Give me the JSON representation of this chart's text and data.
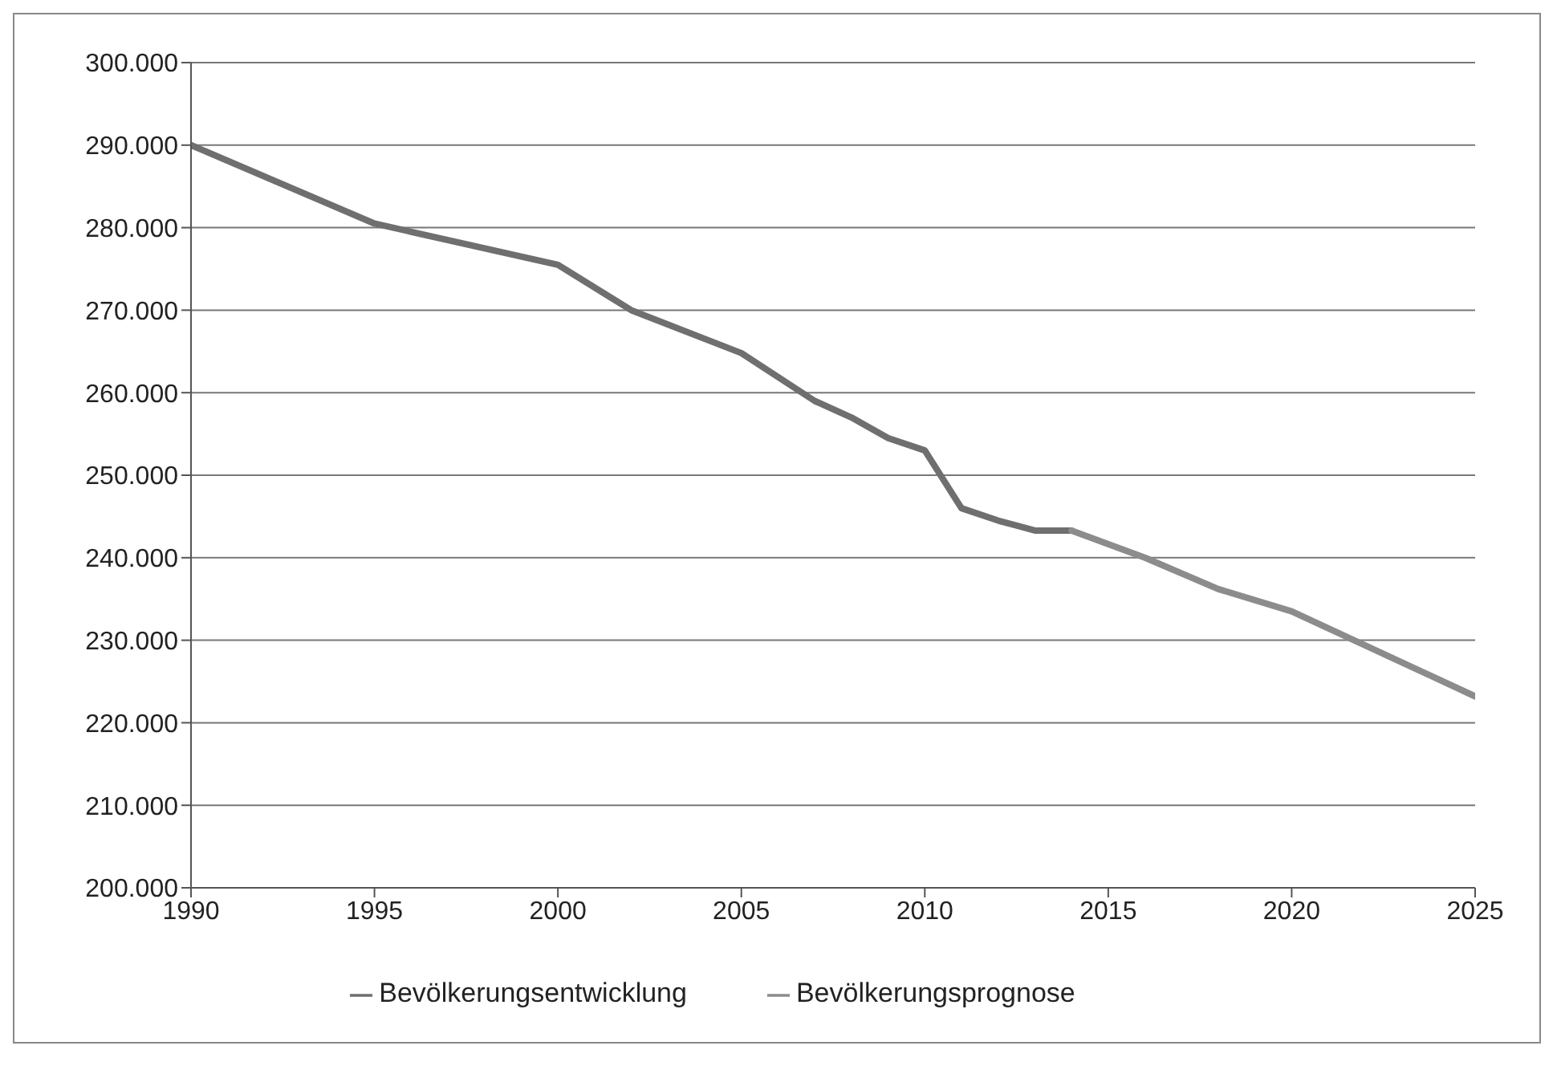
{
  "chart_data": {
    "type": "line",
    "xlim": [
      1990,
      2025
    ],
    "xticks": [
      1990,
      1995,
      2000,
      2005,
      2010,
      2015,
      2020,
      2025
    ],
    "ylim": [
      200000,
      300000
    ],
    "yticks": [
      {
        "value": 200000,
        "label": "200.000"
      },
      {
        "value": 210000,
        "label": "210.000"
      },
      {
        "value": 220000,
        "label": "220.000"
      },
      {
        "value": 230000,
        "label": "230.000"
      },
      {
        "value": 240000,
        "label": "240.000"
      },
      {
        "value": 250000,
        "label": "250.000"
      },
      {
        "value": 260000,
        "label": "260.000"
      },
      {
        "value": 270000,
        "label": "270.000"
      },
      {
        "value": 280000,
        "label": "280.000"
      },
      {
        "value": 290000,
        "label": "290.000"
      },
      {
        "value": 300000,
        "label": "300.000"
      }
    ],
    "grid": "y",
    "legend": "bottom",
    "marker": "none",
    "line_style": "solid",
    "series": [
      {
        "name": "Bevölkerungsentwicklung",
        "color": "#6f6f6f",
        "x": [
          1990,
          1995,
          2000,
          2002,
          2005,
          2007,
          2008,
          2009,
          2010,
          2011,
          2012,
          2013,
          2014
        ],
        "values": [
          290000,
          280500,
          275500,
          270000,
          264800,
          259000,
          257000,
          254500,
          253000,
          246000,
          244500,
          243300,
          243300
        ]
      },
      {
        "name": "Bevölkerungsprognose",
        "color": "#8c8c8c",
        "x": [
          2014,
          2016,
          2018,
          2020,
          2025
        ],
        "values": [
          243300,
          240000,
          236200,
          233500,
          223200
        ]
      }
    ]
  }
}
